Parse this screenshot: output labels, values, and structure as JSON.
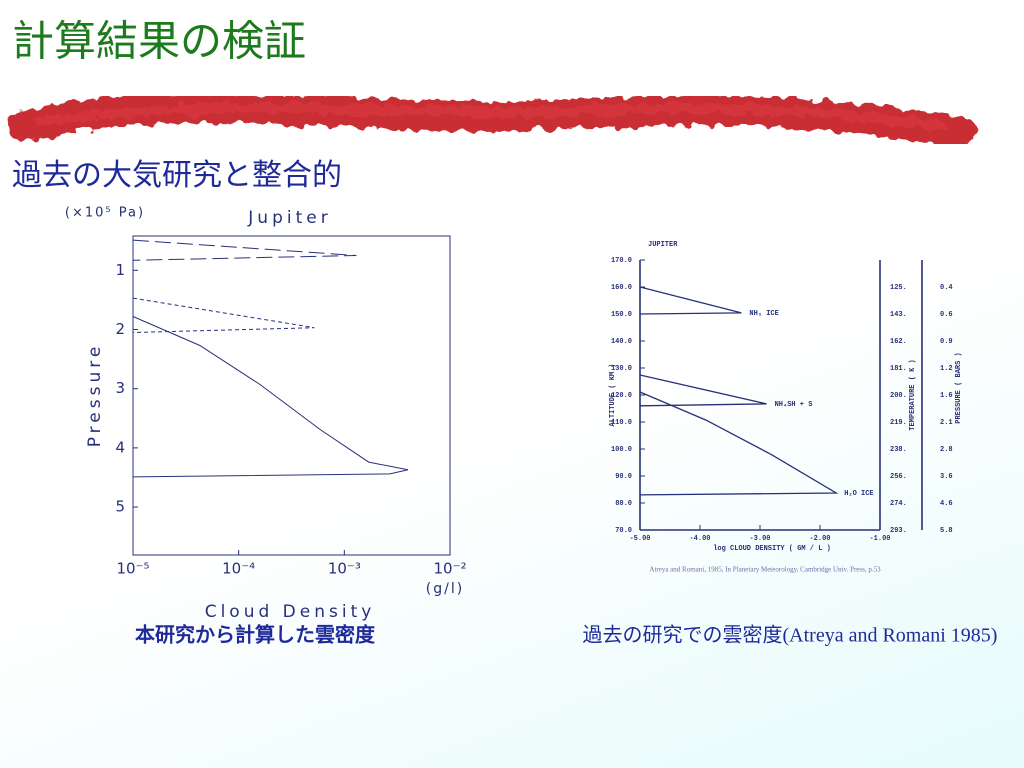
{
  "slide": {
    "title": "計算結果の検証",
    "subtitle": "過去の大気研究と整合的"
  },
  "chart_data": [
    {
      "type": "line",
      "title": "Jupiter",
      "xlabel": "Cloud Density",
      "xunit": "(g/l)",
      "ylabel": "Pressure",
      "yunit": "(×10⁵ Pa)",
      "caption": "本研究から計算した雲密度",
      "xscale": "log",
      "xlim": [
        1e-05,
        0.01
      ],
      "xticks": [
        {
          "value": 1e-05,
          "label": "10⁻⁵"
        },
        {
          "value": 0.0001,
          "label": "10⁻⁴"
        },
        {
          "value": 0.001,
          "label": "10⁻³"
        },
        {
          "value": 0.01,
          "label": "10⁻²"
        }
      ],
      "ylim": [
        0.42,
        5.81
      ],
      "yaxis_inverted": true,
      "yticks": [
        1,
        2,
        3,
        4,
        5
      ],
      "series": [
        {
          "color": "#27307a",
          "linestyle": "long-dash",
          "x": [
            1e-05,
            0.0013,
            1e-05
          ],
          "values": [
            0.49,
            0.75,
            0.83
          ]
        },
        {
          "color": "#27307a",
          "linestyle": "short-dash",
          "x": [
            1e-05,
            0.00052,
            1e-05
          ],
          "values": [
            1.47,
            1.97,
            2.05
          ]
        },
        {
          "color": "#27307a",
          "linestyle": "solid",
          "x": [
            1e-05,
            4.3e-05,
            0.00016,
            0.00059,
            0.0017,
            0.004,
            0.0027,
            1e-05
          ],
          "values": [
            1.78,
            2.27,
            2.93,
            3.69,
            4.24,
            4.37,
            4.44,
            4.49
          ]
        }
      ]
    },
    {
      "type": "line",
      "title": "JUPITER",
      "xlabel": "log CLOUD DENSITY ( GM / L )",
      "ylabel": "ALTITUDE ( KM )",
      "y2label": "TEMPERATURE ( K )",
      "y3label": "PRESSURE ( BARS )",
      "citation": "Atreya and Romani, 1985, In Planetary Meteorology, Cambridge Univ. Press, p.53",
      "caption": "過去の研究での雲密度(Atreya and Romani 1985)",
      "xscale": "linear",
      "xlim": [
        -5,
        -1
      ],
      "xticks": [
        {
          "value": -5,
          "label": "-5.00"
        },
        {
          "value": -4,
          "label": "-4.00"
        },
        {
          "value": -3,
          "label": "-3.00"
        },
        {
          "value": -2,
          "label": "-2.00"
        },
        {
          "value": -1,
          "label": "-1.00"
        }
      ],
      "ylim": [
        70,
        170
      ],
      "yticks": [
        {
          "value": 70,
          "label": "70.0"
        },
        {
          "value": 80,
          "label": "80.0"
        },
        {
          "value": 90,
          "label": "90.0"
        },
        {
          "value": 100,
          "label": "100.0"
        },
        {
          "value": 110,
          "label": "110.0"
        },
        {
          "value": 120,
          "label": "120.0"
        },
        {
          "value": 130,
          "label": "130.0"
        },
        {
          "value": 140,
          "label": "140.0"
        },
        {
          "value": 150,
          "label": "150.0"
        },
        {
          "value": 160,
          "label": "160.0"
        },
        {
          "value": 170,
          "label": "170.0"
        }
      ],
      "y2ticklabels": [
        "293.",
        "274.",
        "256.",
        "238.",
        "219.",
        "200.",
        "181.",
        "162.",
        "143.",
        "125."
      ],
      "y3ticklabels": [
        "5.8",
        "4.6",
        "3.6",
        "2.8",
        "2.1",
        "1.6",
        "1.2",
        "0.9",
        "0.6",
        "0.4"
      ],
      "series": [
        {
          "name": "NH₃ ICE",
          "color": "#27307a",
          "linestyle": "solid",
          "x": [
            -5,
            -3.31,
            -5
          ],
          "values": [
            160,
            150.4,
            150
          ]
        },
        {
          "name": "NH₄SH + S",
          "color": "#27307a",
          "linestyle": "solid",
          "x": [
            -5,
            -2.89,
            -5
          ],
          "values": [
            127.4,
            116.7,
            116
          ]
        },
        {
          "name": "H₂O ICE",
          "color": "#27307a",
          "linestyle": "solid",
          "x": [
            -5,
            -3.9,
            -2.8,
            -1.73,
            -5
          ],
          "values": [
            121.1,
            110.7,
            97.8,
            83.7,
            83
          ]
        }
      ]
    }
  ]
}
